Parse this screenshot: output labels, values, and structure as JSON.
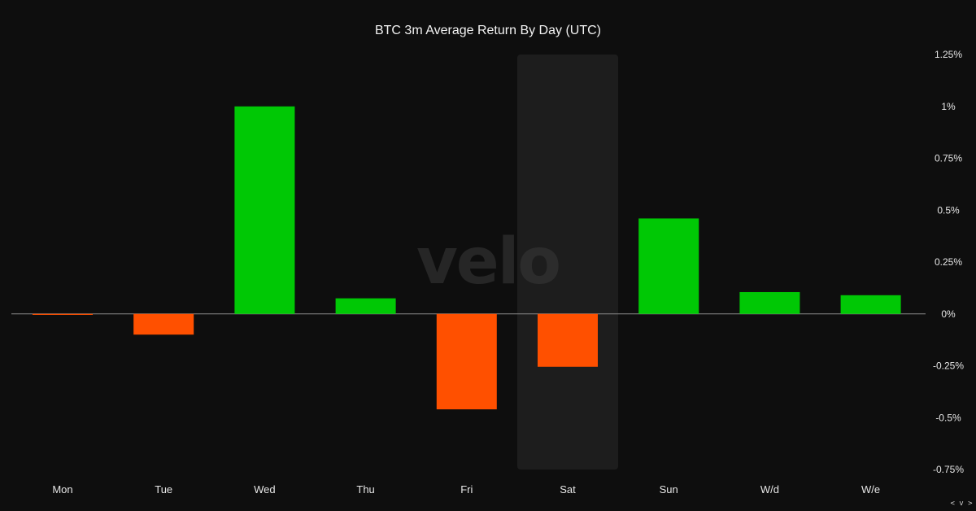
{
  "chart_data": {
    "type": "bar",
    "title": "BTC 3m Average Return By Day (UTC)",
    "categories": [
      "Mon",
      "Tue",
      "Wed",
      "Thu",
      "Fri",
      "Sat",
      "Sun",
      "W/d",
      "W/e"
    ],
    "values": [
      -0.002,
      -0.1,
      1.0,
      0.075,
      -0.46,
      -0.255,
      0.46,
      0.105,
      0.09
    ],
    "ylim": [
      -0.75,
      1.25
    ],
    "yticks": [
      1.25,
      1.0,
      0.75,
      0.5,
      0.25,
      0,
      -0.25,
      -0.5,
      -0.75
    ],
    "ytick_labels": [
      "1.25%",
      "1%",
      "0.75%",
      "0.5%",
      "0.25%",
      "0%",
      "-0.25%",
      "-0.5%",
      "-0.75%"
    ],
    "highlighted_category": "Sat",
    "positive_color": "#00c805",
    "negative_color": "#ff5000",
    "highlight_color": "#1d1d1d",
    "grid": false,
    "legend": "none"
  },
  "watermark": "velo",
  "scroll_hint": "< v >"
}
